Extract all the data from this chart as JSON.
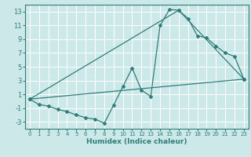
{
  "xlabel": "Humidex (Indice chaleur)",
  "background_color": "#cce8e8",
  "grid_color": "#ffffff",
  "line_color": "#2e7d7a",
  "xlim": [
    -0.5,
    23.5
  ],
  "ylim": [
    -4,
    14
  ],
  "xticks": [
    0,
    1,
    2,
    3,
    4,
    5,
    6,
    7,
    8,
    9,
    10,
    11,
    12,
    13,
    14,
    15,
    16,
    17,
    18,
    19,
    20,
    21,
    22,
    23
  ],
  "yticks": [
    -3,
    -1,
    1,
    3,
    5,
    7,
    9,
    11,
    13
  ],
  "series_main": [
    [
      0,
      0.3
    ],
    [
      1,
      -0.5
    ],
    [
      2,
      -0.7
    ],
    [
      3,
      -1.2
    ],
    [
      4,
      -1.5
    ],
    [
      5,
      -2.0
    ],
    [
      6,
      -2.4
    ],
    [
      7,
      -2.6
    ],
    [
      8,
      -3.2
    ],
    [
      9,
      -0.6
    ],
    [
      10,
      2.1
    ],
    [
      11,
      4.8
    ],
    [
      12,
      1.6
    ],
    [
      13,
      0.7
    ],
    [
      14,
      11.0
    ],
    [
      15,
      13.3
    ],
    [
      16,
      13.2
    ],
    [
      17,
      12.0
    ],
    [
      18,
      9.5
    ],
    [
      19,
      9.2
    ],
    [
      20,
      8.0
    ],
    [
      21,
      7.0
    ],
    [
      22,
      6.5
    ],
    [
      23,
      3.2
    ]
  ],
  "series_straight": [
    [
      0,
      0.3
    ],
    [
      23,
      3.2
    ]
  ],
  "series_triangle": [
    [
      0,
      0.3
    ],
    [
      16,
      13.2
    ],
    [
      23,
      3.2
    ]
  ]
}
